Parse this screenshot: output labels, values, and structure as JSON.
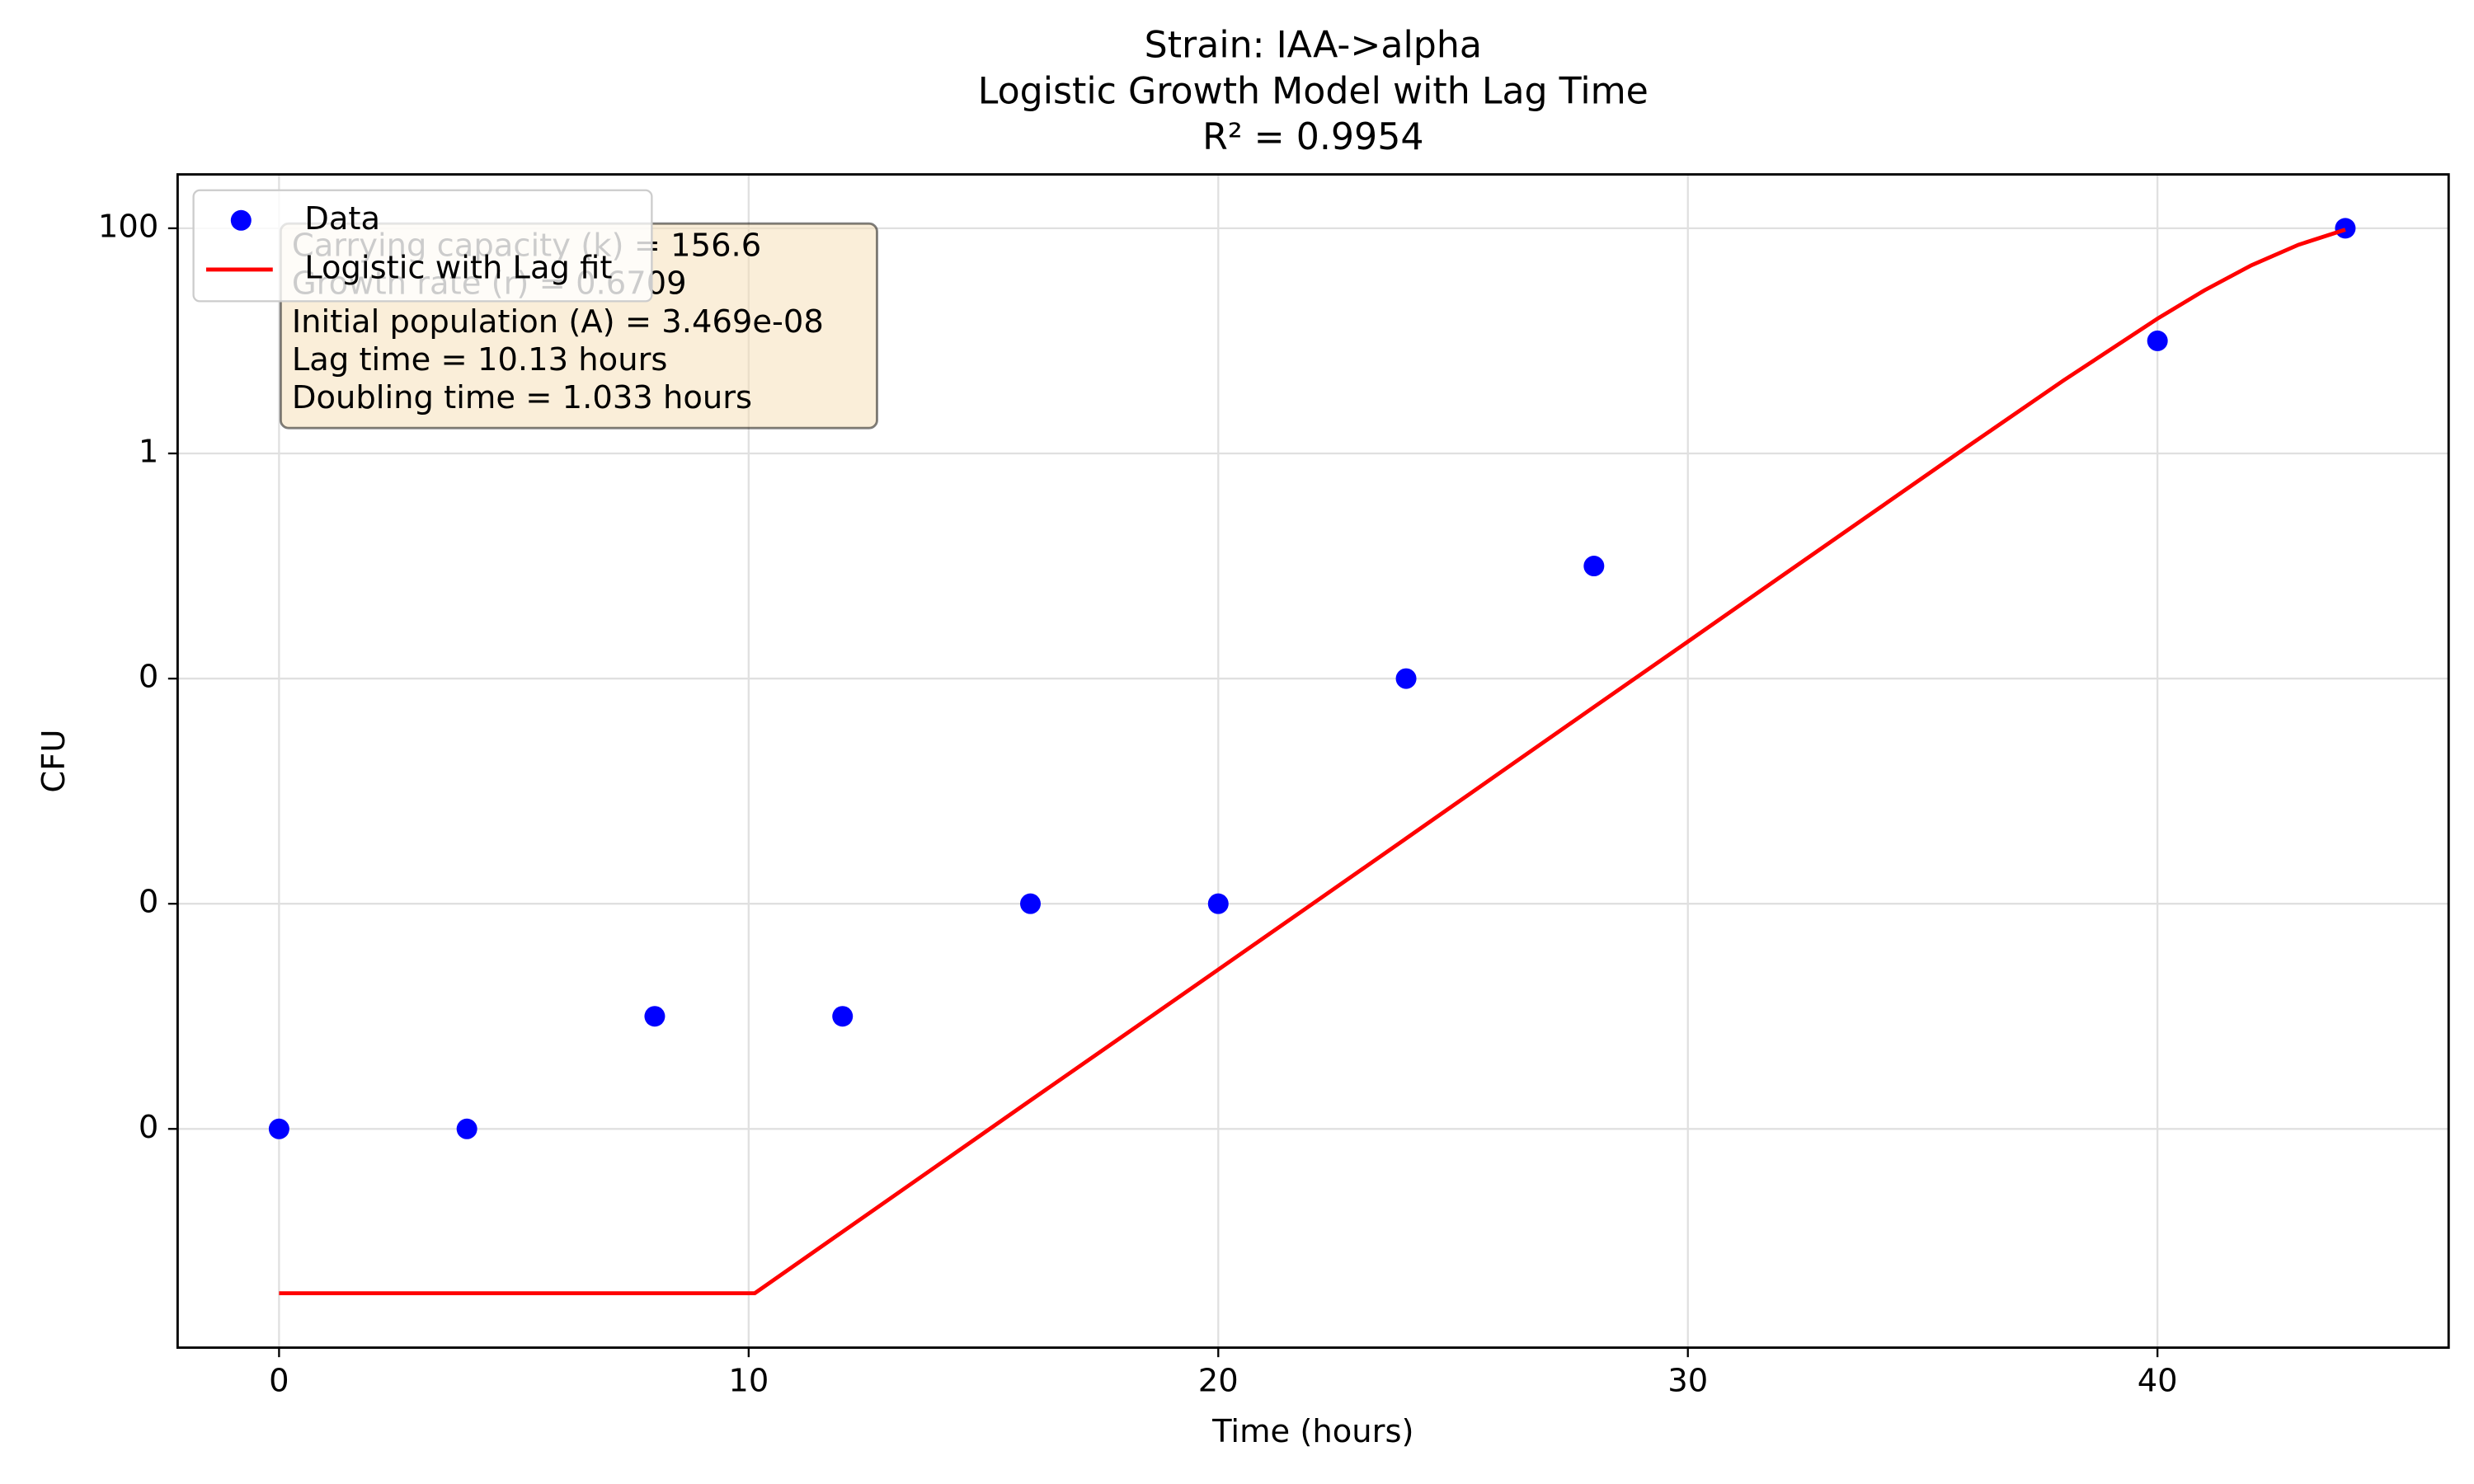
{
  "chart_data": {
    "type": "scatter-line",
    "title": [
      "Strain: IAA->alpha",
      "Logistic Growth Model with Lag Time",
      "R² = 0.9954"
    ],
    "xlabel": "Time (hours)",
    "ylabel": "CFU",
    "xlim": [
      -2.16,
      46.2
    ],
    "xticks": [
      0,
      10,
      20,
      30,
      40
    ],
    "ylim": [
      1.14e-08,
      301
    ],
    "log_y": true,
    "yticks": [
      100,
      1,
      {
        "value": 0.01,
        "label": "0"
      },
      {
        "value": 0.0001,
        "label": "0"
      },
      {
        "value": 1e-06,
        "label": "0"
      }
    ],
    "grid": true,
    "legend": "upper left",
    "series": [
      {
        "name": "Data",
        "kind": "scatter",
        "color": "#0000ff",
        "x": [
          0,
          4,
          8,
          12,
          16,
          20,
          24,
          28,
          40,
          44
        ],
        "values": [
          1e-06,
          1e-06,
          1e-05,
          1e-05,
          0.0001,
          0.0001,
          0.01,
          0.1,
          10,
          100
        ]
      },
      {
        "name": "Logistic with Lag fit",
        "kind": "line",
        "color": "#ff0000",
        "x": [
          0,
          10.13,
          12,
          14,
          16,
          18,
          20,
          22,
          24,
          26,
          28,
          30,
          32,
          34,
          36,
          38,
          40,
          41,
          42,
          43,
          44
        ],
        "values": [
          3.47e-08,
          3.47e-08,
          1.22e-07,
          4.67e-07,
          1.79e-06,
          6.81e-06,
          2.6e-05,
          9.94e-05,
          0.00038,
          0.00146,
          0.00559,
          0.0213,
          0.0816,
          0.311,
          1.186,
          4.45,
          15.75,
          28.1,
          46.9,
          71.3,
          97.2
        ]
      }
    ],
    "annotation": [
      "Carrying capacity (k) = 156.6",
      "Growth rate (r) = 0.6709",
      "Initial population (A) = 3.469e-08",
      "Lag time = 10.13 hours",
      "Doubling time = 1.033 hours"
    ]
  }
}
